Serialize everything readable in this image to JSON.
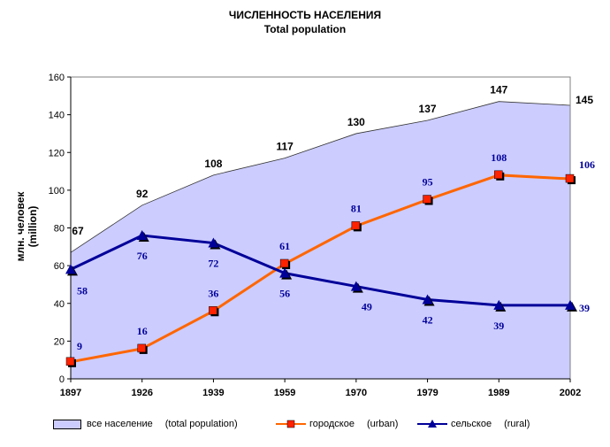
{
  "chart_data": {
    "type": "line",
    "title": "ЧИСЛЕННОСТЬ НАСЕЛЕНИЯ",
    "subtitle": "Total population",
    "ylabel_ru": "млн. человек",
    "ylabel_en": "(million)",
    "x": [
      "1897",
      "1926",
      "1939",
      "1959",
      "1970",
      "1979",
      "1989",
      "2002"
    ],
    "ylim": [
      0,
      160
    ],
    "yticks": [
      "0",
      "20",
      "40",
      "60",
      "80",
      "100",
      "120",
      "140",
      "160"
    ],
    "grid": false,
    "legend_position": "bottom",
    "series": [
      {
        "name_ru": "все население",
        "name_en": "(total population)",
        "kind": "area",
        "color": "#ccccff",
        "values": [
          67,
          92,
          108,
          117,
          130,
          137,
          147,
          145
        ],
        "labels": [
          "67",
          "92",
          "108",
          "117",
          "130",
          "137",
          "147",
          "145"
        ]
      },
      {
        "name_ru": "городское",
        "name_en": "(urban)",
        "kind": "line",
        "marker": "square",
        "color": "#ff6600",
        "values": [
          9,
          16,
          36,
          61,
          81,
          95,
          108,
          106
        ],
        "labels": [
          "9",
          "16",
          "36",
          "61",
          "81",
          "95",
          "108",
          "106"
        ]
      },
      {
        "name_ru": "сельское",
        "name_en": "(rural)",
        "kind": "line",
        "marker": "triangle",
        "color": "#000099",
        "values": [
          58,
          76,
          72,
          56,
          49,
          42,
          39,
          39
        ],
        "labels": [
          "58",
          "76",
          "72",
          "56",
          "49",
          "42",
          "39",
          "39"
        ]
      }
    ]
  }
}
